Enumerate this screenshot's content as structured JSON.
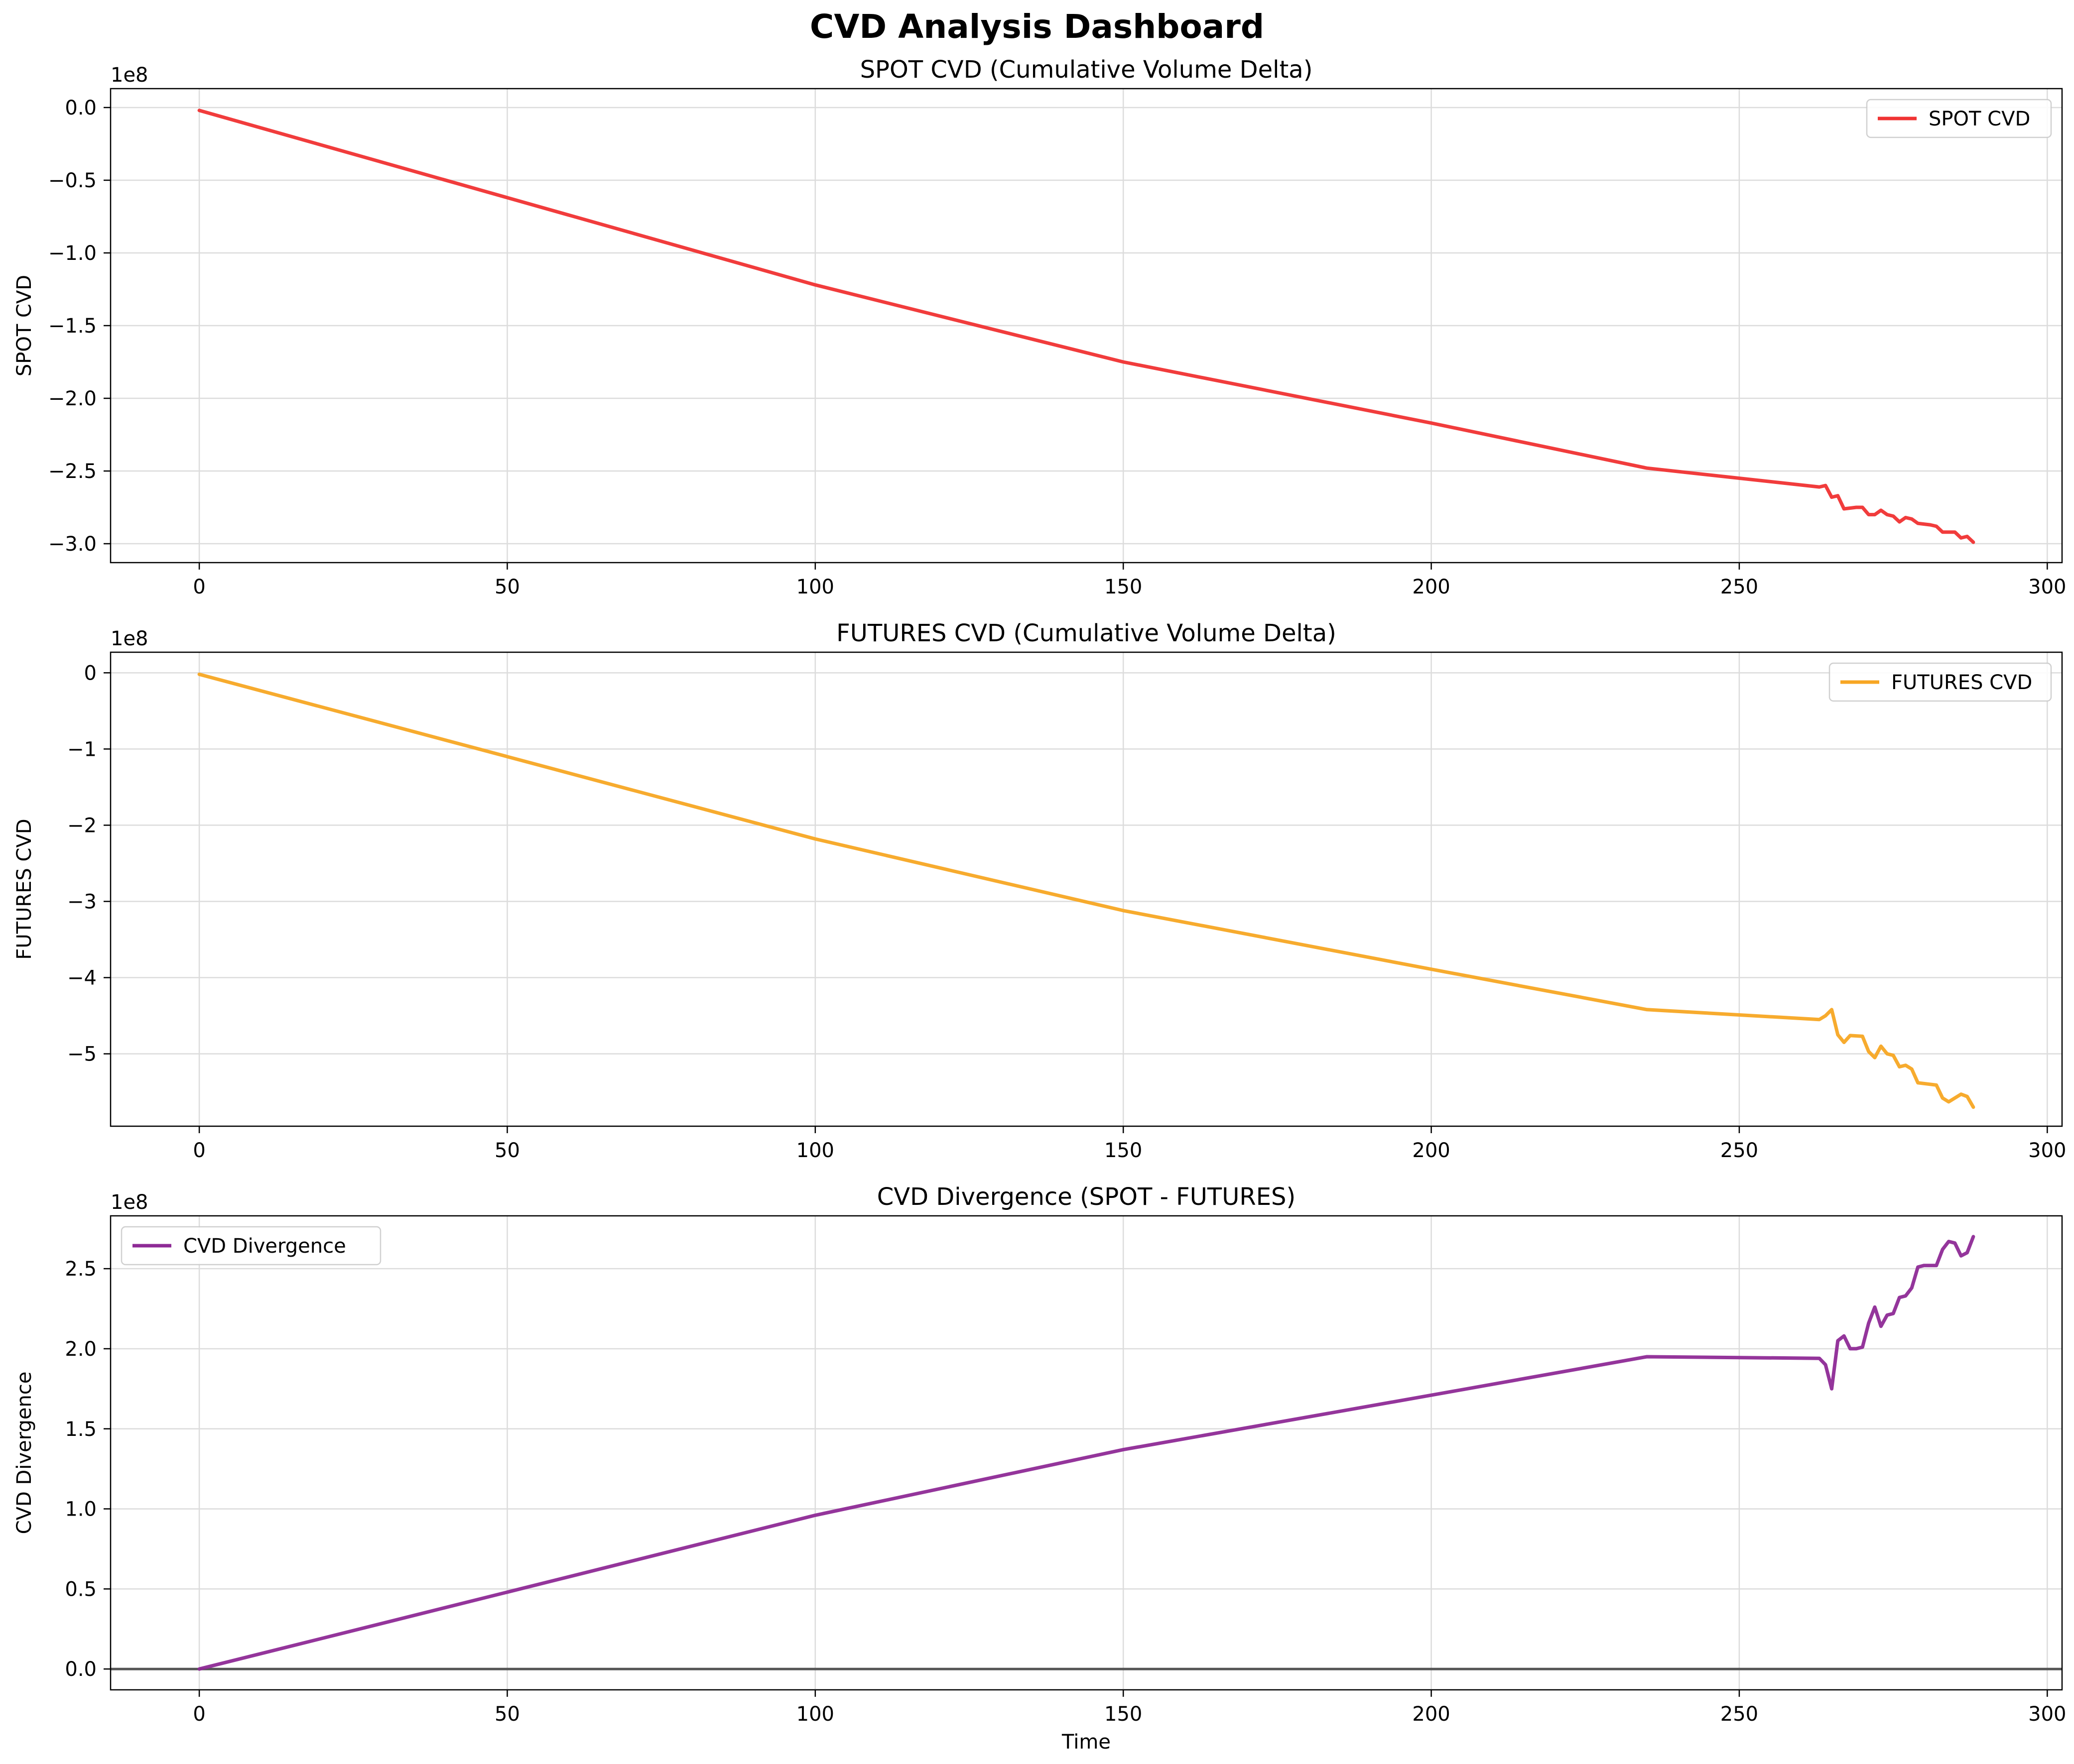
{
  "suptitle": "CVD Analysis Dashboard",
  "chart_data": [
    {
      "type": "line",
      "title": "SPOT CVD (Cumulative Volume Delta)",
      "xlabel": "",
      "ylabel": "SPOT CVD",
      "offset_label": "1e8",
      "xlim": [
        -14.4,
        302.4
      ],
      "ylim": [
        -3.13,
        0.13
      ],
      "x_ticks": [
        0,
        50,
        100,
        150,
        200,
        250,
        300
      ],
      "y_ticks": [
        0.0,
        -0.5,
        -1.0,
        -1.5,
        -2.0,
        -2.5,
        -3.0
      ],
      "y_tick_labels": [
        "0.0",
        "−0.5",
        "−1.0",
        "−1.5",
        "−2.0",
        "−2.5",
        "−3.0"
      ],
      "grid": true,
      "legend": "top-right",
      "reference_line": null,
      "series": [
        {
          "name": "SPOT CVD",
          "color": "#f03232",
          "points": [
            [
              0,
              -0.02
            ],
            [
              50,
              -0.62
            ],
            [
              100,
              -1.22
            ],
            [
              150,
              -1.75
            ],
            [
              200,
              -2.17
            ],
            [
              235,
              -2.48
            ],
            [
              263,
              -2.61
            ],
            [
              264,
              -2.6
            ],
            [
              265,
              -2.68
            ],
            [
              266,
              -2.67
            ],
            [
              267,
              -2.76
            ],
            [
              269,
              -2.75
            ],
            [
              270,
              -2.75
            ],
            [
              271,
              -2.8
            ],
            [
              272,
              -2.8
            ],
            [
              273,
              -2.77
            ],
            [
              274,
              -2.8
            ],
            [
              275,
              -2.81
            ],
            [
              276,
              -2.85
            ],
            [
              277,
              -2.82
            ],
            [
              278,
              -2.83
            ],
            [
              279,
              -2.86
            ],
            [
              281,
              -2.87
            ],
            [
              282,
              -2.88
            ],
            [
              283,
              -2.92
            ],
            [
              285,
              -2.92
            ],
            [
              286,
              -2.96
            ],
            [
              287,
              -2.95
            ],
            [
              288,
              -2.99
            ]
          ]
        }
      ]
    },
    {
      "type": "line",
      "title": "FUTURES CVD (Cumulative Volume Delta)",
      "xlabel": "",
      "ylabel": "FUTURES CVD",
      "offset_label": "1e8",
      "xlim": [
        -14.4,
        302.4
      ],
      "ylim": [
        -5.95,
        0.27
      ],
      "x_ticks": [
        0,
        50,
        100,
        150,
        200,
        250,
        300
      ],
      "y_ticks": [
        0,
        -1,
        -2,
        -3,
        -4,
        -5
      ],
      "y_tick_labels": [
        "0",
        "−1",
        "−2",
        "−3",
        "−4",
        "−5"
      ],
      "grid": true,
      "legend": "top-right",
      "reference_line": null,
      "series": [
        {
          "name": "FUTURES CVD",
          "color": "#f7a623",
          "points": [
            [
              0,
              -0.02
            ],
            [
              50,
              -1.1
            ],
            [
              100,
              -2.18
            ],
            [
              150,
              -3.12
            ],
            [
              200,
              -3.89
            ],
            [
              235,
              -4.42
            ],
            [
              263,
              -4.55
            ],
            [
              264,
              -4.5
            ],
            [
              265,
              -4.42
            ],
            [
              266,
              -4.75
            ],
            [
              267,
              -4.85
            ],
            [
              268,
              -4.76
            ],
            [
              270,
              -4.77
            ],
            [
              271,
              -4.97
            ],
            [
              272,
              -5.05
            ],
            [
              273,
              -4.9
            ],
            [
              274,
              -5.0
            ],
            [
              275,
              -5.02
            ],
            [
              276,
              -5.17
            ],
            [
              277,
              -5.15
            ],
            [
              278,
              -5.2
            ],
            [
              279,
              -5.38
            ],
            [
              281,
              -5.4
            ],
            [
              282,
              -5.41
            ],
            [
              283,
              -5.58
            ],
            [
              284,
              -5.63
            ],
            [
              286,
              -5.53
            ],
            [
              287,
              -5.56
            ],
            [
              288,
              -5.7
            ]
          ]
        }
      ]
    },
    {
      "type": "line",
      "title": "CVD Divergence (SPOT - FUTURES)",
      "xlabel": "Time",
      "ylabel": "CVD Divergence",
      "offset_label": "1e8",
      "xlim": [
        -14.4,
        302.4
      ],
      "ylim": [
        -0.13,
        2.83
      ],
      "x_ticks": [
        0,
        50,
        100,
        150,
        200,
        250,
        300
      ],
      "y_ticks": [
        0.0,
        0.5,
        1.0,
        1.5,
        2.0,
        2.5
      ],
      "y_tick_labels": [
        "0.0",
        "0.5",
        "1.0",
        "1.5",
        "2.0",
        "2.5"
      ],
      "grid": true,
      "legend": "top-left",
      "reference_line": {
        "y": 0,
        "color": "#555555"
      },
      "series": [
        {
          "name": "CVD Divergence",
          "color": "#8e2a96",
          "points": [
            [
              0,
              0.0
            ],
            [
              50,
              0.48
            ],
            [
              100,
              0.96
            ],
            [
              150,
              1.37
            ],
            [
              200,
              1.71
            ],
            [
              235,
              1.95
            ],
            [
              263,
              1.94
            ],
            [
              264,
              1.9
            ],
            [
              265,
              1.75
            ],
            [
              266,
              2.05
            ],
            [
              267,
              2.08
            ],
            [
              268,
              2.0
            ],
            [
              269,
              2.0
            ],
            [
              270,
              2.01
            ],
            [
              271,
              2.16
            ],
            [
              272,
              2.26
            ],
            [
              273,
              2.14
            ],
            [
              274,
              2.21
            ],
            [
              275,
              2.22
            ],
            [
              276,
              2.32
            ],
            [
              277,
              2.33
            ],
            [
              278,
              2.38
            ],
            [
              279,
              2.51
            ],
            [
              280,
              2.52
            ],
            [
              282,
              2.52
            ],
            [
              283,
              2.62
            ],
            [
              284,
              2.67
            ],
            [
              285,
              2.66
            ],
            [
              286,
              2.58
            ],
            [
              287,
              2.6
            ],
            [
              288,
              2.7
            ]
          ]
        }
      ]
    }
  ]
}
